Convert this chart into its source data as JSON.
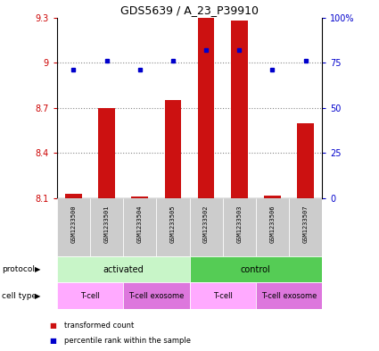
{
  "title": "GDS5639 / A_23_P39910",
  "samples": [
    "GSM1233500",
    "GSM1233501",
    "GSM1233504",
    "GSM1233505",
    "GSM1233502",
    "GSM1233503",
    "GSM1233506",
    "GSM1233507"
  ],
  "transformed_count": [
    8.13,
    8.7,
    8.11,
    8.75,
    9.3,
    9.28,
    8.12,
    8.6
  ],
  "percentile_rank": [
    71,
    76,
    71,
    76,
    82,
    82,
    71,
    76
  ],
  "ylim_left": [
    8.1,
    9.3
  ],
  "ylim_right": [
    0,
    100
  ],
  "yticks_left": [
    8.1,
    8.4,
    8.7,
    9.0,
    9.3
  ],
  "yticks_right": [
    0,
    25,
    50,
    75,
    100
  ],
  "ytick_labels_left": [
    "8.1",
    "8.4",
    "8.7",
    "9",
    "9.3"
  ],
  "ytick_labels_right": [
    "0",
    "25",
    "50",
    "75",
    "100%"
  ],
  "protocol_groups": [
    {
      "label": "activated",
      "span": [
        0,
        4
      ],
      "color": "#c8f5c8"
    },
    {
      "label": "control",
      "span": [
        4,
        8
      ],
      "color": "#55cc55"
    }
  ],
  "cell_type_groups": [
    {
      "label": "T-cell",
      "span": [
        0,
        2
      ],
      "color": "#ffaaff"
    },
    {
      "label": "T-cell exosome",
      "span": [
        2,
        4
      ],
      "color": "#dd77dd"
    },
    {
      "label": "T-cell",
      "span": [
        4,
        6
      ],
      "color": "#ffaaff"
    },
    {
      "label": "T-cell exosome",
      "span": [
        6,
        8
      ],
      "color": "#dd77dd"
    }
  ],
  "bar_color": "#cc1111",
  "dot_color": "#0000cc",
  "bar_bottom": 8.1,
  "legend_items": [
    {
      "label": "transformed count",
      "color": "#cc1111"
    },
    {
      "label": "percentile rank within the sample",
      "color": "#0000cc"
    }
  ],
  "background_color": "#ffffff",
  "grid_color": "#888888",
  "label_box_color": "#cccccc"
}
